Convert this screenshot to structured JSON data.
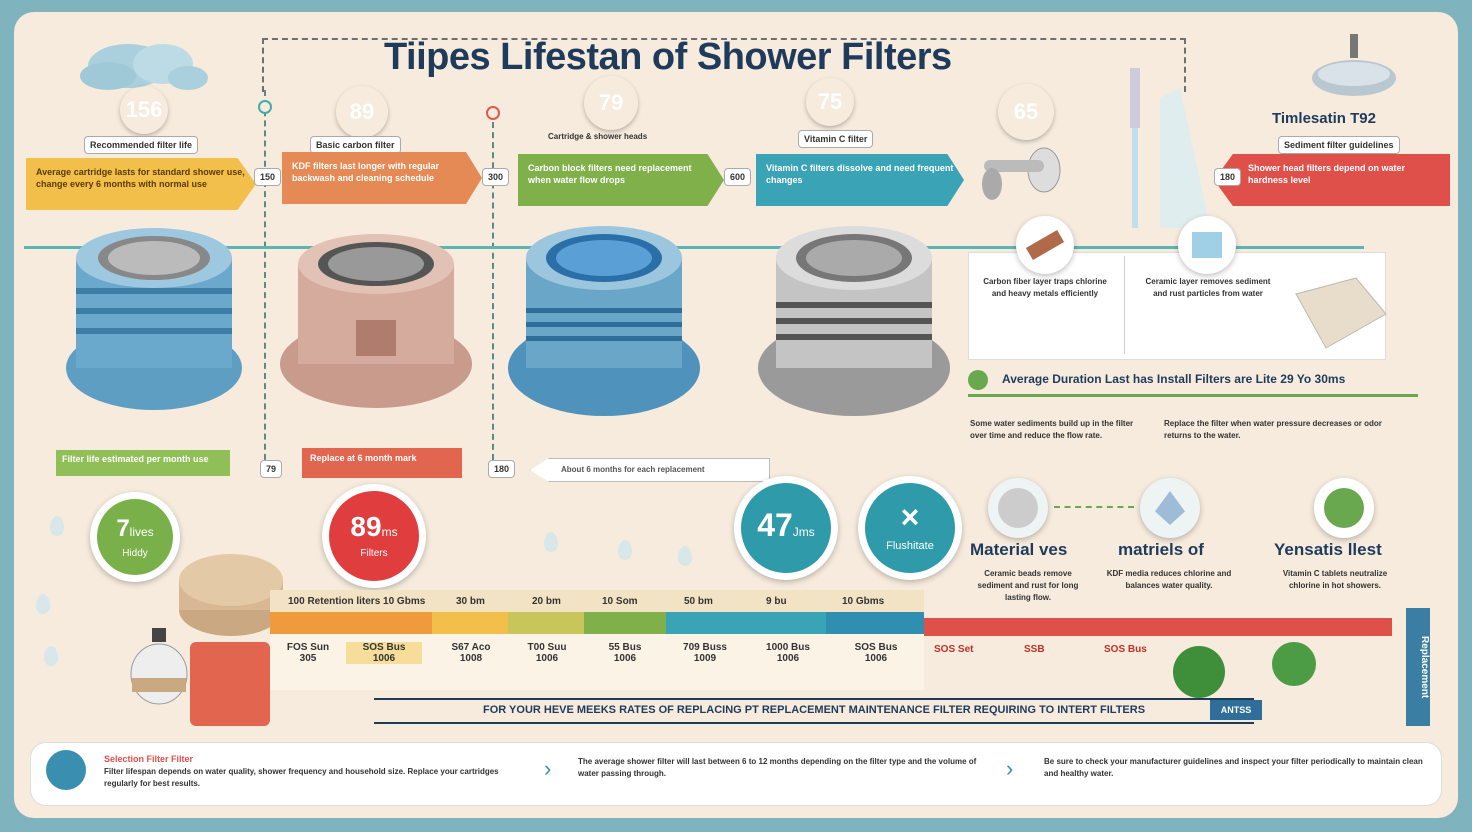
{
  "title": "Tiipes Lifestan of Shower Filters",
  "badges": [
    {
      "text": "156",
      "color": "#e06a5a"
    },
    {
      "text": "89",
      "color": "#e8974a"
    },
    {
      "text": "79",
      "color": "#8fbf56"
    },
    {
      "text": "75",
      "color": "#3fa2b8"
    },
    {
      "text": "65",
      "color": "#6aa84f"
    }
  ],
  "captions": [
    "Recommended filter life",
    "Basic carbon filter",
    "Cartridge & shower heads",
    "Vitamin C filter"
  ],
  "arrow_boxes": [
    {
      "text": "Average cartridge lasts for standard shower use, change every 6 months with normal use",
      "color": "#f2c04a"
    },
    {
      "text": "KDF filters last longer with regular backwash and cleaning schedule",
      "color": "#e58a55"
    },
    {
      "text": "Carbon block filters need replacement when water flow drops",
      "color": "#7fb04a"
    },
    {
      "text": "Vitamin C filters dissolve and need frequent changes",
      "color": "#3aa3b5"
    },
    {
      "text": "Shower head filters depend on water hardness level",
      "color": "#e0504a"
    }
  ],
  "arrow_tags": [
    "150",
    "300",
    "600",
    "180"
  ],
  "right_title": "Timlesatin T92",
  "right_subtitle": "Sediment filter guidelines",
  "middle_banner": "Average Duration Last has Install Filters are Lite 29 Yo 30ms",
  "info_captions": [
    "Carbon fiber layer traps chlorine and heavy metals efficiently",
    "Ceramic layer removes sediment and rust particles from water"
  ],
  "right_text_blocks": [
    "Some water sediments build up in the filter over time and reduce the flow rate.",
    "Replace the filter when water pressure decreases or odor returns to the water."
  ],
  "under_tags": [
    {
      "text": "Filter life estimated per month use",
      "color": "#8fbf56"
    },
    {
      "text": "Replace at 6 month mark",
      "color": "#e2664f"
    }
  ],
  "small_nums": [
    "79",
    "180"
  ],
  "arrow_banner": "About 6 months for each replacement",
  "big_circles": [
    {
      "num": "7",
      "unit": "lives",
      "sub": "Hiddy",
      "color": "#7ab04a"
    },
    {
      "num": "89",
      "unit": "ms",
      "sub": "Filters",
      "color": "#e03e3e"
    },
    {
      "num": "47",
      "unit": "Jms",
      "sub": "",
      "color": "#2e9aaa"
    },
    {
      "num": "×",
      "unit": "",
      "sub": "Flushitate",
      "color": "#2e9aaa"
    }
  ],
  "feature_titles": [
    "Material ves",
    "matriels of",
    "Yensatis llest"
  ],
  "feature_texts": [
    "Ceramic beads remove sediment and rust for long lasting flow.",
    "KDF media reduces chlorine and balances water quality.",
    "Vitamin C tablets neutralize chlorine in hot showers."
  ],
  "timeline_labels": [
    "100 Retention liters 10 Gbms",
    "30 bm",
    "20 bm",
    "10 Som",
    "50 bm",
    "9 bu",
    "10 Gbms"
  ],
  "table_cells": [
    [
      "FOS Sun",
      "305"
    ],
    [
      "SOS Bus",
      "1006"
    ],
    [
      "S67 Aco",
      "1008"
    ],
    [
      "T00 Suu",
      "1006"
    ],
    [
      "55 Bus",
      "1006"
    ],
    [
      "709 Buss",
      "1009"
    ],
    [
      "1000 Bus",
      "1006"
    ],
    [
      "SOS Bus",
      "1006"
    ]
  ],
  "red_labels": [
    "SOS Set",
    "SSB",
    "SOS Bus"
  ],
  "bottom_banner": "FOR YOUR HEVE MEEKS RATES OF REPLACING PT REPLACEMENT MAINTENANCE FILTER REQUIRING TO INTERT FILTERS",
  "bottom_banner_tag": "ANTSS",
  "side_vertical": "Replacement",
  "footer_title": "Selection Filter Filter",
  "footer_blocks": [
    "Filter lifespan depends on water quality, shower frequency and household size. Replace your cartridges regularly for best results.",
    "The average shower filter will last between 6 to 12 months depending on the filter type and the volume of water passing through.",
    "Be sure to check your manufacturer guidelines and inspect your filter periodically to maintain clean and healthy water."
  ]
}
